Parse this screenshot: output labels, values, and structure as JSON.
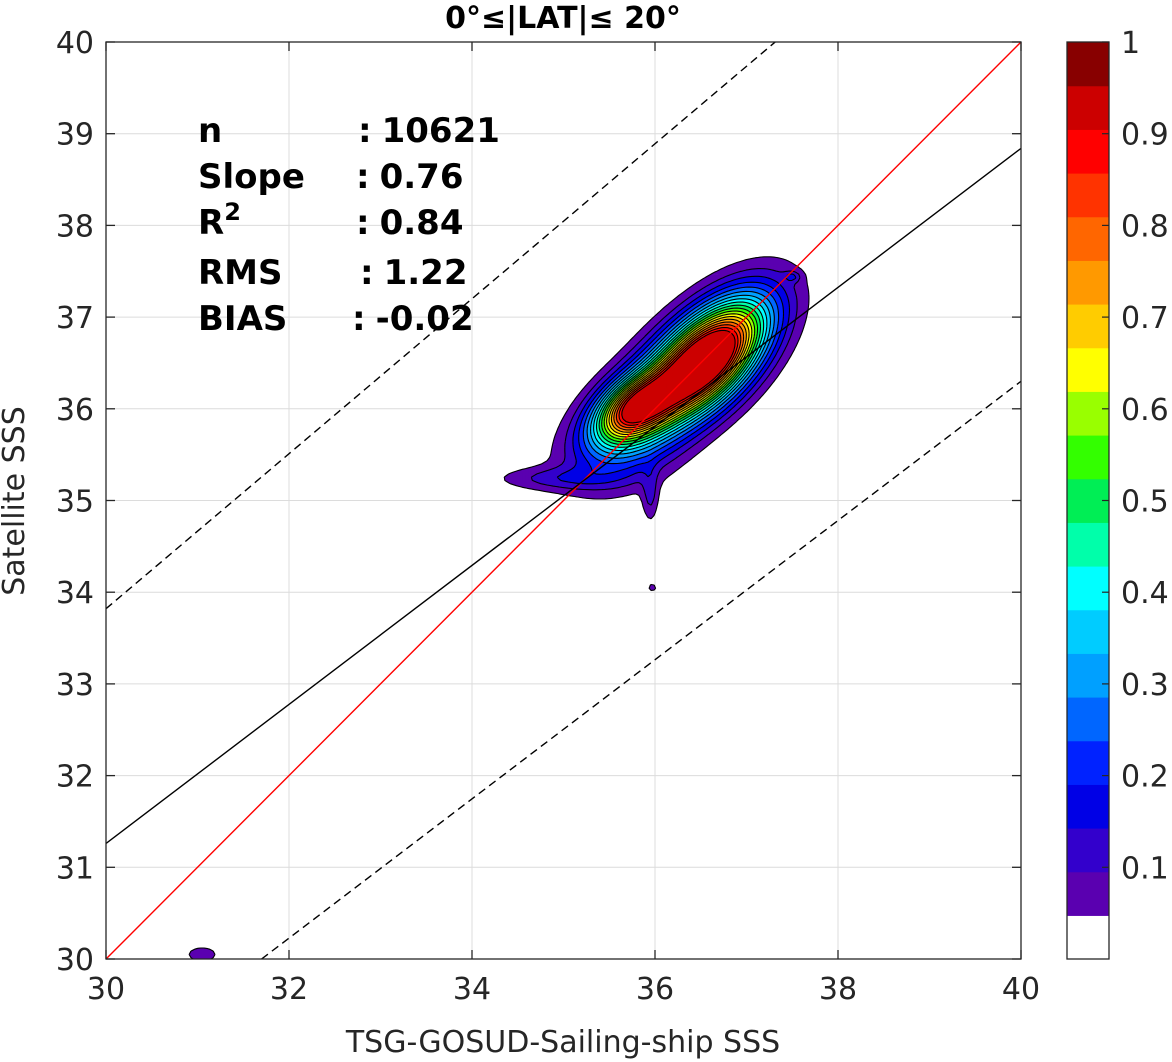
{
  "chart_data": {
    "type": "contour",
    "title": "0°≤|LAT|≤ 20°",
    "xlabel": "TSG-GOSUD-Sailing-ship SSS",
    "ylabel": "Satellite SSS",
    "xlim": [
      30,
      40
    ],
    "ylim": [
      30,
      40
    ],
    "xticks": [
      "30",
      "32",
      "34",
      "36",
      "38",
      "40"
    ],
    "yticks": [
      "30",
      "31",
      "32",
      "33",
      "34",
      "35",
      "36",
      "37",
      "38",
      "39",
      "40"
    ],
    "grid": true,
    "stats": [
      {
        "label": "n",
        "sep": ":",
        "value": "10621"
      },
      {
        "label": "Slope",
        "sep": ":",
        "value": "0.76"
      },
      {
        "label": "R",
        "sup": "2",
        "sep": ":",
        "value": "0.84"
      },
      {
        "label": "RMS",
        "sep": ":",
        "value": "1.22"
      },
      {
        "label": "BIAS",
        "sep": ":",
        "value": "-0.02"
      }
    ],
    "lines": [
      {
        "name": "one-to-one",
        "color": "#ff0000",
        "style": "solid",
        "points": [
          [
            30,
            30
          ],
          [
            40,
            40
          ]
        ]
      },
      {
        "name": "regression",
        "color": "#000000",
        "style": "solid",
        "points": [
          [
            30,
            31.26
          ],
          [
            40,
            38.84
          ]
        ]
      },
      {
        "name": "upper-bound",
        "color": "#000000",
        "style": "dashed",
        "points": [
          [
            30,
            33.82
          ],
          [
            40,
            42.27
          ]
        ]
      },
      {
        "name": "lower-bound",
        "color": "#000000",
        "style": "dashed",
        "points": [
          [
            31.7,
            30
          ],
          [
            40,
            36.3
          ]
        ]
      }
    ],
    "density_peaks": [
      {
        "x": 36.6,
        "y": 36.58,
        "sx": 0.55,
        "sy": 0.28,
        "angle_deg": 45,
        "amplitude": 1.0
      },
      {
        "x": 35.75,
        "y": 36.0,
        "sx": 0.33,
        "sy": 0.2,
        "angle_deg": 35,
        "amplitude": 0.66
      },
      {
        "x": 36.2,
        "y": 36.25,
        "sx": 0.6,
        "sy": 0.3,
        "angle_deg": 40,
        "amplitude": 0.35
      },
      {
        "x": 35.6,
        "y": 35.55,
        "sx": 0.45,
        "sy": 0.3,
        "angle_deg": 20,
        "amplitude": 0.15
      },
      {
        "x": 34.9,
        "y": 35.24,
        "sx": 0.45,
        "sy": 0.09,
        "angle_deg": 0,
        "amplitude": 0.1
      },
      {
        "x": 35.95,
        "y": 35.05,
        "sx": 0.06,
        "sy": 0.2,
        "angle_deg": 0,
        "amplitude": 0.1
      },
      {
        "x": 37.5,
        "y": 37.44,
        "sx": 0.06,
        "sy": 0.04,
        "angle_deg": 0,
        "amplitude": 0.1
      },
      {
        "x": 35.97,
        "y": 34.05,
        "sx": 0.03,
        "sy": 0.03,
        "angle_deg": 0,
        "amplitude": 0.1
      },
      {
        "x": 31.05,
        "y": 30.05,
        "sx": 0.12,
        "sy": 0.06,
        "angle_deg": 0,
        "amplitude": 0.1
      }
    ],
    "contour_levels": [
      0.05,
      0.1,
      0.15,
      0.2,
      0.25,
      0.3,
      0.35,
      0.4,
      0.45,
      0.5,
      0.55,
      0.6,
      0.65,
      0.7,
      0.75,
      0.8,
      0.85,
      0.9,
      0.95
    ],
    "colorbar": {
      "ticks": [
        "0.1",
        "0.2",
        "0.3",
        "0.4",
        "0.5",
        "0.6",
        "0.7",
        "0.8",
        "0.9",
        "1"
      ],
      "min": 0,
      "max": 1,
      "colors": [
        "#ffffff",
        "#5a00b0",
        "#3300cc",
        "#0000e6",
        "#0022ff",
        "#0066ff",
        "#00a0ff",
        "#00ccff",
        "#00ffff",
        "#00ffaa",
        "#00ee55",
        "#33ff00",
        "#99ff00",
        "#ffff00",
        "#ffcc00",
        "#ff9900",
        "#ff6600",
        "#ff3300",
        "#ff0000",
        "#cc0000",
        "#880000"
      ]
    }
  }
}
